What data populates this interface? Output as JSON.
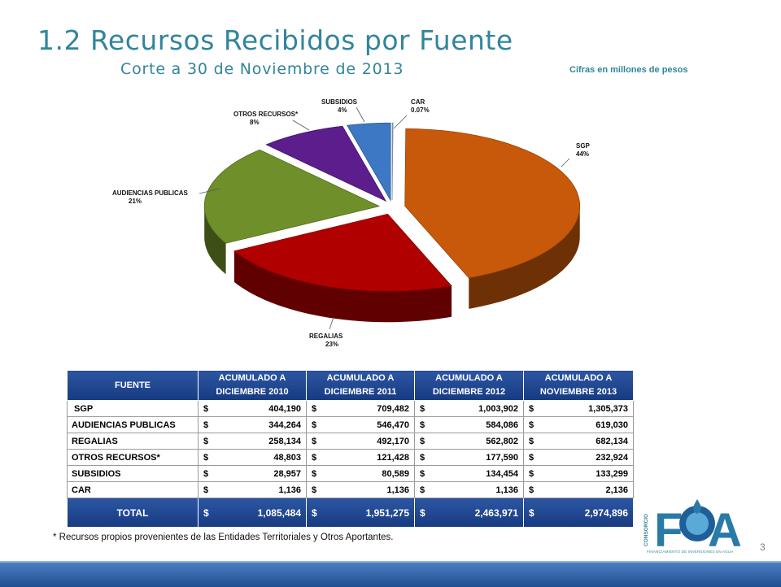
{
  "title": "1.2 Recursos Recibidos por Fuente",
  "subtitle": "Corte a 30 de Noviembre de 2013",
  "units_note": "Cifras en millones de pesos",
  "chart_data": {
    "type": "pie",
    "title": "",
    "slices": [
      {
        "label": "SGP",
        "pct_label": "44%",
        "value": 44,
        "color": "#c8590a"
      },
      {
        "label": "REGALIAS",
        "pct_label": "23%",
        "value": 23,
        "color": "#b00000"
      },
      {
        "label": "AUDIENCIAS PUBLICAS",
        "pct_label": "21%",
        "value": 21,
        "color": "#6f8f2a"
      },
      {
        "label": "OTROS RECURSOS*",
        "pct_label": "8%",
        "value": 8,
        "color": "#5b1e8c"
      },
      {
        "label": "SUBSIDIOS",
        "pct_label": "4%",
        "value": 4,
        "color": "#3d78c4"
      },
      {
        "label": "CAR",
        "pct_label": "0.07%",
        "value": 0.07,
        "color": "#9dbbe0"
      }
    ]
  },
  "table": {
    "headers": [
      [
        "FUENTE"
      ],
      [
        "ACUMULADO A",
        "DICIEMBRE 2010"
      ],
      [
        "ACUMULADO A",
        "DICIEMBRE 2011"
      ],
      [
        "ACUMULADO A",
        "DICIEMBRE 2012"
      ],
      [
        "ACUMULADO A",
        "NOVIEMBRE 2013"
      ]
    ],
    "currency": "$",
    "rows": [
      {
        "fuente": "SGP",
        "values": [
          "404,190",
          "709,482",
          "1,003,902",
          "1,305,373"
        ]
      },
      {
        "fuente": "AUDIENCIAS PUBLICAS",
        "values": [
          "344,264",
          "546,470",
          "584,086",
          "619,030"
        ]
      },
      {
        "fuente": "REGALIAS",
        "values": [
          "258,134",
          "492,170",
          "562,802",
          "682,134"
        ]
      },
      {
        "fuente": "OTROS RECURSOS*",
        "values": [
          "48,803",
          "121,428",
          "177,590",
          "232,924"
        ]
      },
      {
        "fuente": "SUBSIDIOS",
        "values": [
          "28,957",
          "80,589",
          "134,454",
          "133,299"
        ]
      },
      {
        "fuente": "CAR",
        "values": [
          "1,136",
          "1,136",
          "1,136",
          "2,136"
        ]
      }
    ],
    "total": {
      "fuente": "TOTAL",
      "values": [
        "1,085,484",
        "1,951,275",
        "2,463,971",
        "2,974,896"
      ]
    }
  },
  "footnote": "* Recursos propios provenientes de  las Entidades Territoriales y Otros Aportantes.",
  "page_number": "3",
  "logo": {
    "side_text": "CONSORCIO",
    "mark": "FIA",
    "tagline": "FINANCIAMIENTO DE INVERSIONES EN AGUA"
  }
}
